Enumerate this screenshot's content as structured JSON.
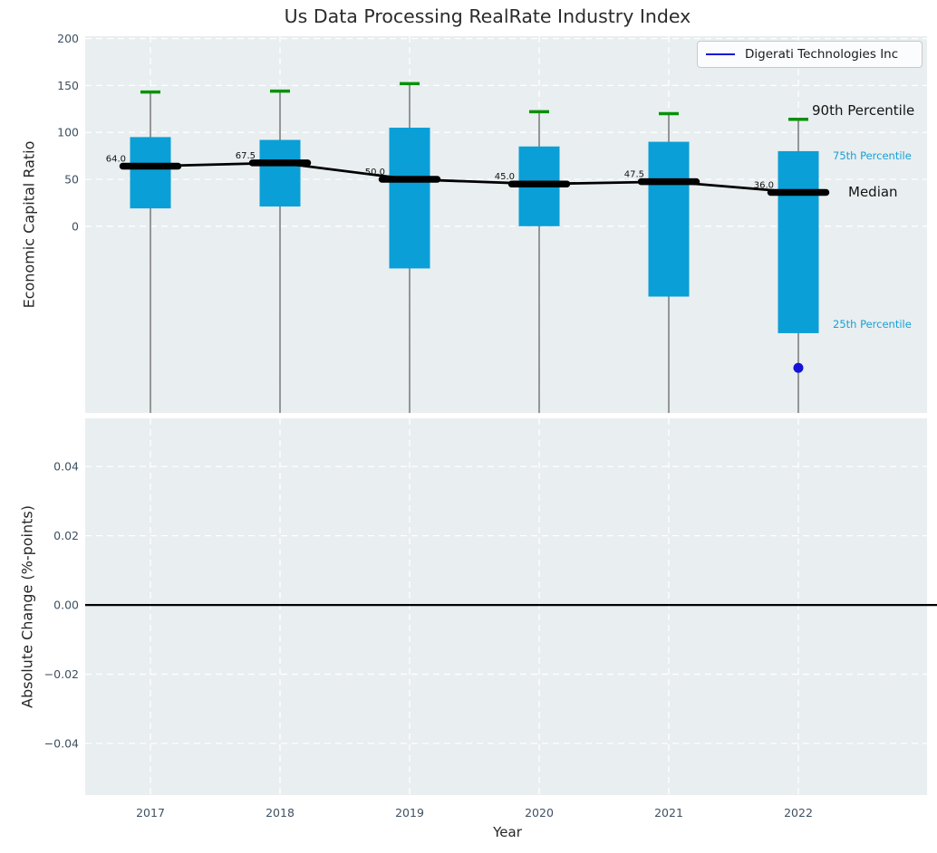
{
  "title": "Us Data Processing RealRate Industry Index",
  "legend": {
    "label": "Digerati Technologies Inc"
  },
  "annotations": {
    "p90": "90th Percentile",
    "p75": "75th Percentile",
    "median": "Median",
    "p25": "25th Percentile"
  },
  "axes": {
    "top": {
      "ylabel": "Economic Capital Ratio",
      "ytick_labels": [
        "200",
        "150",
        "100",
        "50",
        "0"
      ],
      "ytick_values": [
        200,
        150,
        100,
        50,
        0
      ],
      "ylim": [
        -199,
        202.5
      ]
    },
    "bottom": {
      "ylabel": "Absolute Change (%-points)",
      "ytick_labels": [
        "0.04",
        "0.02",
        "0.00",
        "−0.02",
        "−0.04"
      ],
      "ytick_values": [
        0.04,
        0.02,
        0,
        -0.02,
        -0.04
      ],
      "ylim": [
        -0.0549,
        0.0539
      ],
      "zero_line": 0.0
    },
    "xlabel": "Year"
  },
  "chart_data": [
    {
      "type": "box",
      "title": "Us Data Processing RealRate Industry Index",
      "xlabel": "Year",
      "ylabel": "Economic Capital Ratio",
      "categories": [
        "2017",
        "2018",
        "2019",
        "2020",
        "2021",
        "2022"
      ],
      "series": [
        {
          "name": "90th Percentile",
          "values": [
            143,
            144,
            152,
            122,
            120,
            114
          ]
        },
        {
          "name": "75th Percentile",
          "values": [
            95,
            92,
            105,
            85,
            90,
            80
          ]
        },
        {
          "name": "Median",
          "values": [
            64.0,
            67.5,
            50.0,
            45.0,
            47.5,
            36.0
          ]
        },
        {
          "name": "25th Percentile",
          "values": [
            19,
            21,
            -45,
            0,
            -75,
            -114
          ]
        }
      ],
      "median_labels": [
        "64.0",
        "67.5",
        "50.0",
        "45.0",
        "47.5",
        "36.0"
      ],
      "company_point": {
        "name": "Digerati Technologies Inc",
        "category": "2022",
        "value": -151
      },
      "ylim": [
        -199,
        202.5
      ],
      "yticks": [
        200,
        150,
        100,
        50,
        0
      ],
      "grid": "dashed-white",
      "legend_position": "upper right"
    },
    {
      "type": "line",
      "ylabel": "Absolute Change (%-points)",
      "categories": [
        "2017",
        "2018",
        "2019",
        "2020",
        "2021",
        "2022"
      ],
      "series": [],
      "zero_line": 0.0,
      "ylim": [
        -0.0549,
        0.0539
      ],
      "yticks": [
        0.04,
        0.02,
        0,
        -0.02,
        -0.04
      ]
    }
  ],
  "colors": {
    "box_fill": "#0a9fd7",
    "p90_marker": "#089108",
    "median_line": "#000000",
    "company": "#1313d9",
    "whisker": "#6f6f6f",
    "axes_bg": "#e9eef0",
    "grid": "#ffffff",
    "tick_label": "#3e5062",
    "percentile_label": "#18a0d5",
    "zero_line": "#000000"
  }
}
